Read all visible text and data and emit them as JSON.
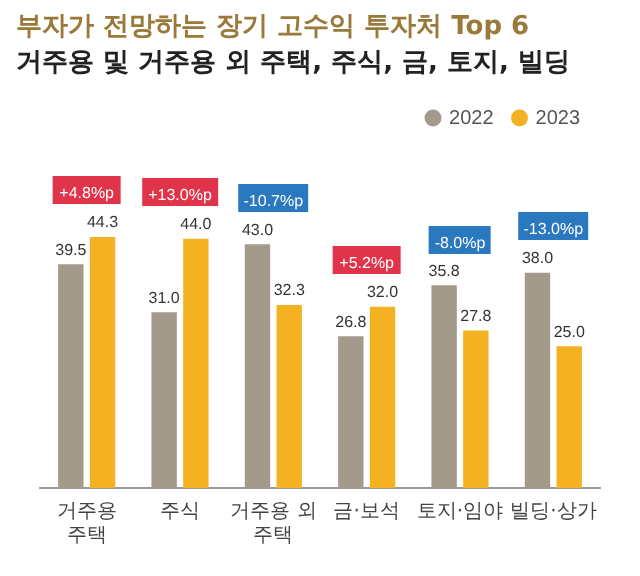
{
  "chart_data": {
    "type": "bar",
    "title": "부자가 전망하는 장기 고수익 투자처 Top 6",
    "subtitle": "거주용 및 거주용 외 주택, 주식, 금, 토지, 빌딩",
    "categories": [
      "거주용 주택",
      "주식",
      "거주용 외 주택",
      "금·보석",
      "토지·임야",
      "빌딩·상가"
    ],
    "series": [
      {
        "name": "2022",
        "color": "#a39a8c",
        "values": [
          39.5,
          31.0,
          43.0,
          26.8,
          35.8,
          38.0
        ],
        "value_labels": [
          "39.5",
          "31.0",
          "43.0",
          "26.8",
          "35.8",
          "38.0"
        ]
      },
      {
        "name": "2023",
        "color": "#f4b223",
        "values": [
          44.3,
          44.0,
          32.3,
          32.0,
          27.8,
          25.0
        ],
        "value_labels": [
          "44.3",
          "44.0",
          "32.3",
          "32.0",
          "27.8",
          "25.0"
        ]
      }
    ],
    "annotations": [
      "+4.8%p",
      "+13.0%p",
      "-10.7%p",
      "+5.2%p",
      "-8.0%p",
      "-13.0%p"
    ],
    "legend": "top right",
    "grid": false
  }
}
